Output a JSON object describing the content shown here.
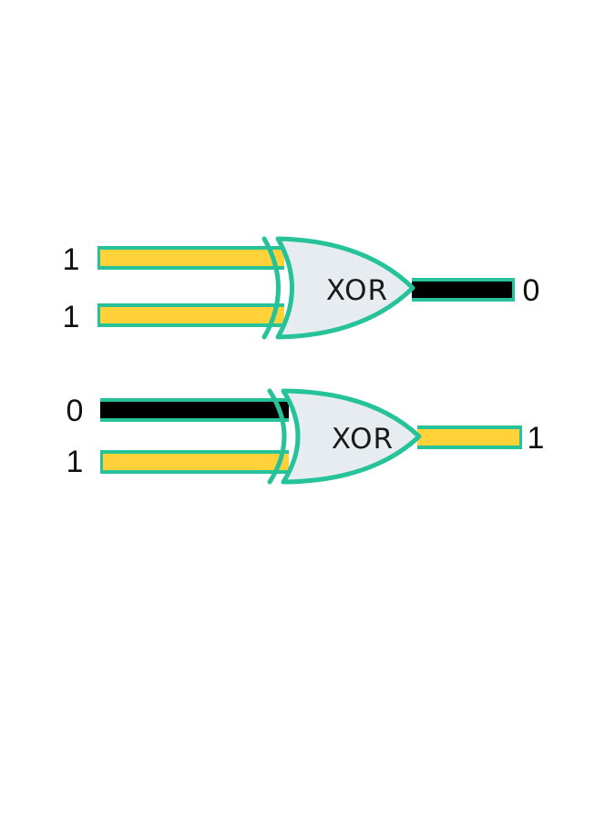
{
  "colors": {
    "wire_border": "#26c29a",
    "high": "#ffd23a",
    "low": "#000000",
    "gate_fill": "#e6ecef",
    "gate_stroke": "#26c29a"
  },
  "gates": [
    {
      "type": "XOR",
      "label": "XOR",
      "input_a": "1",
      "input_b": "1",
      "output": "0"
    },
    {
      "type": "XOR",
      "label": "XOR",
      "input_a": "0",
      "input_b": "1",
      "output": "1"
    }
  ]
}
